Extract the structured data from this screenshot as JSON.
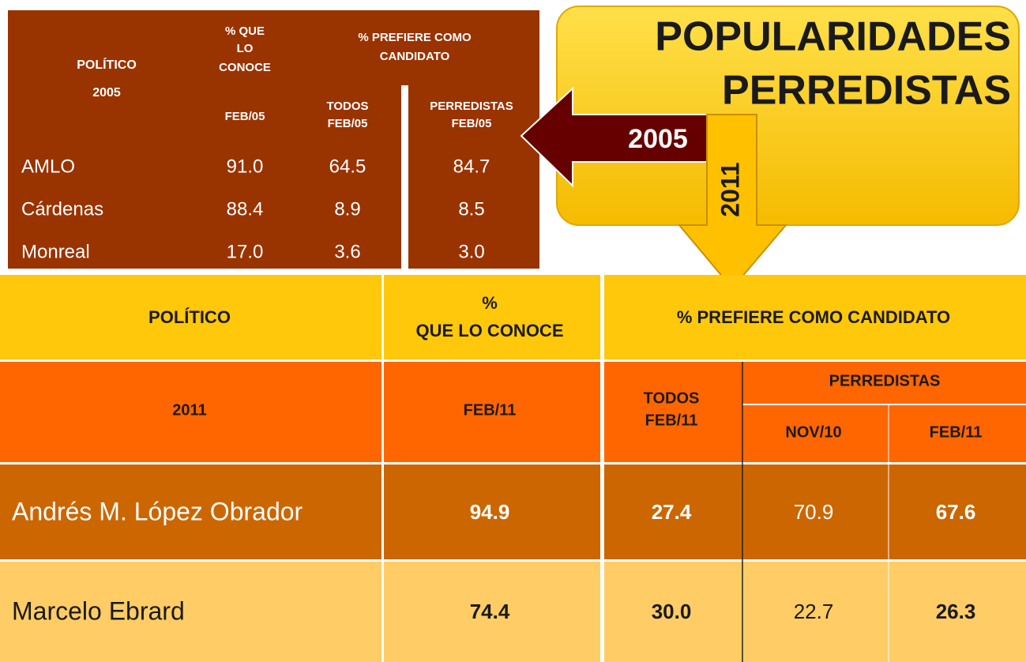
{
  "title": [
    "POPULARIDADES",
    "PERREDISTAS"
  ],
  "arrows": {
    "left": "2005",
    "down": "2011"
  },
  "table_2005": {
    "header": {
      "politico": [
        "POLÍTICO",
        "2005"
      ],
      "conoce": [
        "% QUE",
        "LO",
        "CONOCE"
      ],
      "prefiere": [
        "% PREFIERE COMO",
        "CANDIDATO"
      ],
      "conoce_date": "FEB/05",
      "todos": [
        "TODOS",
        "FEB/05"
      ],
      "perredistas": [
        "PERREDISTAS",
        "FEB/05"
      ]
    },
    "rows": [
      [
        "AMLO",
        "91.0",
        "64.5",
        "84.7"
      ],
      [
        "Cárdenas",
        "88.4",
        "8.9",
        "8.5"
      ],
      [
        "Monreal",
        "17.0",
        "3.6",
        "3.0"
      ]
    ]
  },
  "table_2011": {
    "header": {
      "politico": "POLÍTICO",
      "conoce": [
        "%",
        "QUE LO CONOCE"
      ],
      "prefiere": "% PREFIERE COMO CANDIDATO",
      "year": "2011",
      "conoce_date": "FEB/11",
      "todos": [
        "TODOS",
        "FEB/11"
      ],
      "perredistas": "PERREDISTAS",
      "nov": "NOV/10",
      "feb": "FEB/11"
    },
    "rows": [
      [
        "Andrés M. López Obrador",
        "94.9",
        "27.4",
        "70.9",
        "67.6"
      ],
      [
        "Marcelo Ebrard",
        "74.4",
        "30.0",
        "22.7",
        "26.3"
      ]
    ]
  }
}
